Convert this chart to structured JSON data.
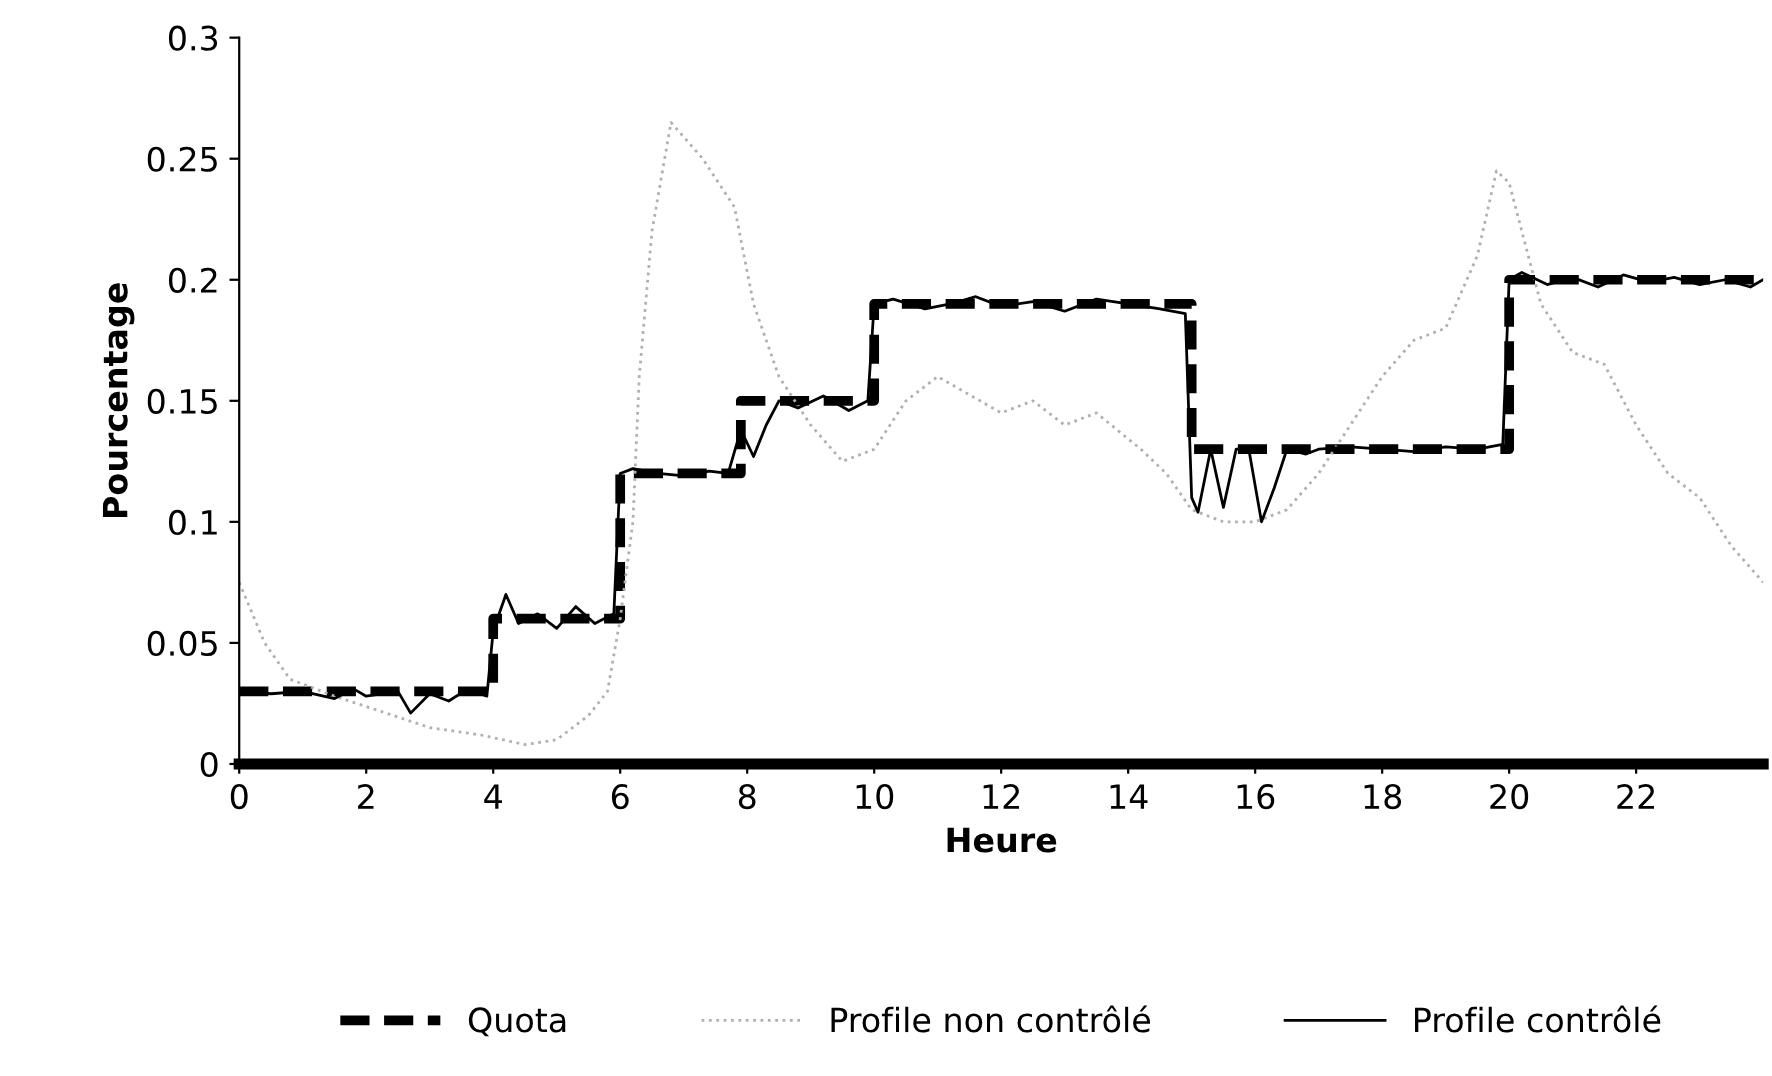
{
  "chart_data": {
    "type": "line",
    "xlabel": "Heure",
    "ylabel": "Pourcentage",
    "xlim": [
      0,
      24
    ],
    "xticks": [
      0,
      2,
      4,
      6,
      8,
      10,
      12,
      14,
      16,
      18,
      20,
      22
    ],
    "ylim": [
      0,
      0.3
    ],
    "yticks": [
      0,
      0.05,
      0.1,
      0.15,
      0.2,
      0.25,
      0.3
    ],
    "grid": false,
    "legend": "bottom",
    "marker": "none",
    "series": [
      {
        "name": "Quota",
        "type": "step",
        "color": "#000000",
        "line_style": "dashed",
        "x": [
          0,
          4,
          6,
          7.9,
          10,
          15,
          20,
          24
        ],
        "values": [
          0.03,
          0.06,
          0.12,
          0.15,
          0.19,
          0.13,
          0.2,
          0.2
        ]
      },
      {
        "name": "Profile non contrôlé",
        "color": "#b0b0b0",
        "line_style": "dotted",
        "x": [
          0,
          0.4,
          0.8,
          1.5,
          2.2,
          3,
          3.8,
          4.5,
          5,
          5.5,
          5.8,
          6,
          6.2,
          6.3,
          6.5,
          6.8,
          7.3,
          7.8,
          8.1,
          8.5,
          9,
          9.5,
          10,
          10.5,
          11,
          12,
          12.5,
          13,
          13.5,
          14.2,
          14.6,
          15,
          15.5,
          16,
          16.5,
          17,
          17.5,
          18,
          18.5,
          19,
          19.5,
          19.8,
          20,
          20.5,
          21,
          21.5,
          22,
          22.5,
          23,
          23.5,
          24
        ],
        "values": [
          0.075,
          0.05,
          0.035,
          0.028,
          0.022,
          0.015,
          0.012,
          0.008,
          0.01,
          0.02,
          0.03,
          0.06,
          0.1,
          0.16,
          0.22,
          0.265,
          0.25,
          0.23,
          0.19,
          0.16,
          0.14,
          0.125,
          0.13,
          0.15,
          0.16,
          0.145,
          0.15,
          0.14,
          0.145,
          0.13,
          0.12,
          0.105,
          0.1,
          0.1,
          0.105,
          0.12,
          0.14,
          0.16,
          0.175,
          0.18,
          0.21,
          0.245,
          0.24,
          0.19,
          0.17,
          0.165,
          0.14,
          0.12,
          0.11,
          0.09,
          0.075
        ]
      },
      {
        "name": "Profile contrôlé",
        "color": "#000000",
        "line_style": "solid",
        "x": [
          0,
          0.5,
          1,
          1.5,
          1.8,
          2,
          2.5,
          2.7,
          3,
          3.3,
          3.6,
          3.9,
          4,
          4.2,
          4.4,
          4.7,
          5,
          5.3,
          5.6,
          5.9,
          6,
          6.2,
          6.6,
          7,
          7.4,
          7.7,
          7.9,
          8.1,
          8.3,
          8.5,
          8.8,
          9.2,
          9.6,
          9.9,
          10,
          10.3,
          10.8,
          11.2,
          11.6,
          12,
          12.5,
          13,
          13.5,
          14,
          14.5,
          14.9,
          15,
          15.1,
          15.3,
          15.5,
          15.7,
          15.9,
          16.1,
          16.3,
          16.5,
          16.8,
          17,
          17.5,
          18,
          18.5,
          19,
          19.5,
          19.9,
          20,
          20.2,
          20.6,
          21,
          21.4,
          21.8,
          22.2,
          22.6,
          23,
          23.4,
          23.8,
          24
        ],
        "values": [
          0.03,
          0.029,
          0.03,
          0.027,
          0.031,
          0.028,
          0.03,
          0.021,
          0.029,
          0.026,
          0.031,
          0.028,
          0.055,
          0.07,
          0.058,
          0.062,
          0.056,
          0.065,
          0.058,
          0.062,
          0.12,
          0.122,
          0.12,
          0.119,
          0.121,
          0.12,
          0.138,
          0.127,
          0.14,
          0.15,
          0.147,
          0.152,
          0.146,
          0.15,
          0.19,
          0.192,
          0.188,
          0.19,
          0.193,
          0.189,
          0.191,
          0.187,
          0.192,
          0.19,
          0.188,
          0.186,
          0.11,
          0.104,
          0.13,
          0.106,
          0.13,
          0.13,
          0.1,
          0.114,
          0.13,
          0.128,
          0.13,
          0.131,
          0.13,
          0.129,
          0.131,
          0.13,
          0.132,
          0.2,
          0.203,
          0.198,
          0.201,
          0.197,
          0.202,
          0.199,
          0.201,
          0.198,
          0.2,
          0.197,
          0.2
        ]
      }
    ]
  }
}
